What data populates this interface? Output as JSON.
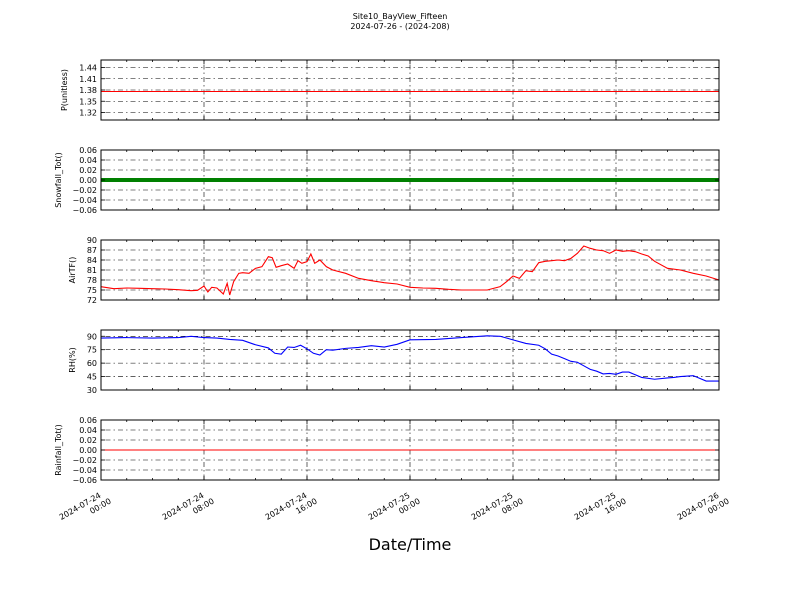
{
  "title": "Site10_BayView_Fifteen",
  "subtitle": "2024-07-26 - (2024-208)",
  "xlabel": "Date/Time",
  "x_ticks": [
    [
      "2024-07-24",
      "00:00"
    ],
    [
      "2024-07-24",
      "08:00"
    ],
    [
      "2024-07-24",
      "16:00"
    ],
    [
      "2024-07-25",
      "00:00"
    ],
    [
      "2024-07-25",
      "08:00"
    ],
    [
      "2024-07-25",
      "16:00"
    ],
    [
      "2024-07-26",
      "00:00"
    ]
  ],
  "chart_data": [
    {
      "type": "line",
      "ylabel": "P(unitless)",
      "ylim": [
        1.3,
        1.46
      ],
      "yticks": [
        "1.44",
        "1.41",
        "1.38",
        "1.35",
        "1.32"
      ],
      "ytick_values": [
        1.44,
        1.41,
        1.38,
        1.35,
        1.32
      ],
      "grid": true,
      "color": "#ff0000",
      "x": [
        0,
        48
      ],
      "values": [
        1.376,
        1.376
      ]
    },
    {
      "type": "scatter",
      "ylabel": "Snowfall_Tot()",
      "ylim": [
        -0.06,
        0.06
      ],
      "yticks": [
        "0.06",
        "0.04",
        "0.02",
        "0.00",
        "−0.02",
        "−0.04",
        "−0.06"
      ],
      "ytick_values": [
        0.06,
        0.04,
        0.02,
        0.0,
        -0.02,
        -0.04,
        -0.06
      ],
      "grid": true,
      "color": "#008000",
      "x": [
        0,
        48
      ],
      "values": [
        0.0,
        0.0
      ]
    },
    {
      "type": "line",
      "ylabel": "AirTF()",
      "ylim": [
        72,
        90
      ],
      "yticks": [
        "90",
        "87",
        "84",
        "81",
        "78",
        "75",
        "72"
      ],
      "ytick_values": [
        90,
        87,
        84,
        81,
        78,
        75,
        72
      ],
      "grid": true,
      "color": "#ff0000",
      "x": [
        0,
        1,
        2,
        3,
        4,
        5,
        6,
        7,
        7.5,
        8,
        8.3,
        8.6,
        9,
        9.5,
        9.8,
        10,
        10.3,
        10.7,
        11,
        11.5,
        12,
        12.5,
        13,
        13.3,
        13.6,
        14,
        14.5,
        15,
        15.3,
        15.6,
        16,
        16.3,
        16.6,
        17,
        17.5,
        18,
        19,
        20,
        21,
        22,
        23,
        24,
        25,
        26,
        27,
        28,
        29,
        30,
        31,
        31.5,
        32,
        32.5,
        33,
        33.5,
        34,
        34.5,
        35,
        35.5,
        36,
        36.5,
        37,
        37.5,
        38,
        38.5,
        39,
        39.5,
        40,
        40.5,
        41,
        41.5,
        42,
        42.5,
        43,
        44,
        45,
        46,
        47,
        48
      ],
      "values": [
        76.0,
        75.4,
        75.6,
        75.5,
        75.4,
        75.3,
        75.1,
        74.8,
        74.9,
        76.2,
        74.4,
        75.8,
        75.6,
        73.8,
        77.0,
        73.5,
        77.5,
        80.0,
        80.2,
        80.0,
        81.5,
        82.0,
        85.0,
        84.7,
        81.8,
        82.3,
        82.8,
        81.5,
        83.8,
        83.0,
        83.5,
        85.8,
        83.0,
        84.0,
        82.0,
        81.0,
        80.0,
        78.5,
        77.8,
        77.2,
        76.8,
        75.8,
        75.6,
        75.5,
        75.2,
        75.0,
        75.0,
        75.0,
        76.0,
        77.5,
        79.2,
        78.5,
        80.8,
        80.5,
        83.2,
        83.6,
        83.8,
        84.0,
        83.8,
        84.5,
        86.0,
        88.2,
        87.5,
        87.0,
        86.8,
        86.0,
        87.0,
        86.6,
        86.8,
        86.5,
        85.8,
        85.2,
        83.6,
        81.5,
        81.0,
        80.0,
        79.2,
        78.0
      ]
    },
    {
      "type": "line",
      "ylabel": "RH(%)",
      "ylim": [
        30,
        97
      ],
      "yticks": [
        "90",
        "75",
        "60",
        "45",
        "30"
      ],
      "ytick_values": [
        90,
        75,
        60,
        45,
        30
      ],
      "grid": true,
      "color": "#0000ff",
      "x": [
        0,
        2,
        4,
        6,
        7,
        8,
        9,
        10,
        11,
        12,
        13,
        13.5,
        14,
        14.5,
        15,
        15.5,
        16,
        16.5,
        17,
        17.5,
        18,
        19,
        20,
        21,
        22,
        23,
        24,
        26,
        28,
        30,
        31,
        32,
        33,
        34,
        34.5,
        35,
        35.5,
        36,
        36.5,
        37,
        37.5,
        38,
        38.5,
        39,
        39.5,
        40,
        40.5,
        41,
        42,
        43,
        44,
        44.5,
        45,
        46,
        47,
        48
      ],
      "values": [
        88,
        88.5,
        88,
        88.5,
        90,
        88.5,
        88,
        86.5,
        85.5,
        80.5,
        77,
        71,
        70,
        78,
        77.5,
        80,
        76,
        71,
        69,
        75,
        74.5,
        76.5,
        77.5,
        79.5,
        78,
        81,
        86,
        86.5,
        88.5,
        90.5,
        90,
        86,
        82,
        80,
        76,
        70,
        68,
        65,
        62,
        61,
        57,
        53,
        51,
        48,
        48.5,
        47.5,
        50,
        50,
        44,
        42,
        43.5,
        44,
        45,
        46,
        40,
        40
      ]
    },
    {
      "type": "line",
      "ylabel": "Rainfall_Tot()",
      "ylim": [
        -0.06,
        0.06
      ],
      "yticks": [
        "0.06",
        "0.04",
        "0.02",
        "0.00",
        "−0.02",
        "−0.04",
        "−0.06"
      ],
      "ytick_values": [
        0.06,
        0.04,
        0.02,
        0.0,
        -0.02,
        -0.04,
        -0.06
      ],
      "grid": true,
      "color": "#ff0000",
      "x": [
        0,
        48
      ],
      "values": [
        0.0,
        0.0
      ]
    }
  ]
}
